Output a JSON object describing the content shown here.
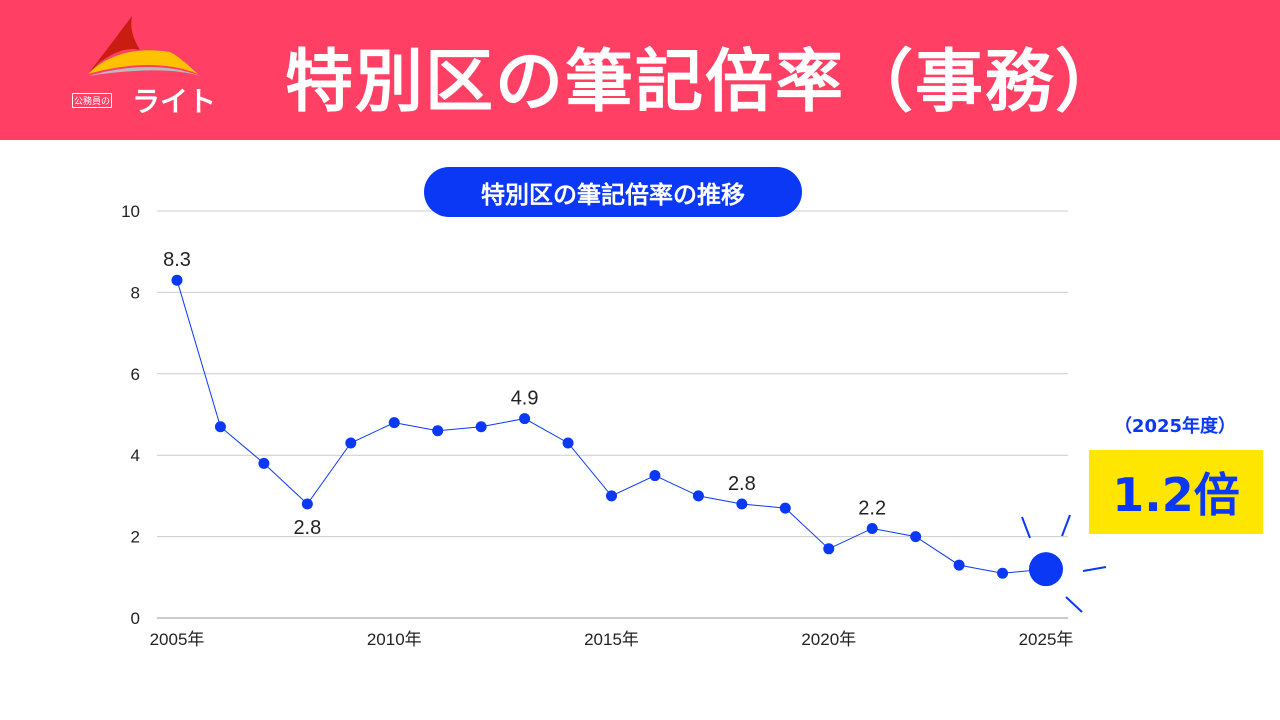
{
  "header": {
    "title": "特別区の筆記倍率（事務）",
    "logo_small": "公務員の",
    "logo_main": "ライト"
  },
  "chart_data": {
    "type": "line",
    "title": "特別区の筆記倍率の推移",
    "x": [
      2005,
      2006,
      2007,
      2008,
      2009,
      2010,
      2011,
      2012,
      2013,
      2014,
      2015,
      2016,
      2017,
      2018,
      2019,
      2020,
      2021,
      2022,
      2023,
      2024,
      2025
    ],
    "values": [
      8.3,
      4.7,
      3.8,
      2.8,
      4.3,
      4.8,
      4.6,
      4.7,
      4.9,
      4.3,
      3.0,
      3.5,
      3.0,
      2.8,
      2.7,
      1.7,
      2.2,
      2.0,
      1.3,
      1.1,
      1.2
    ],
    "data_labels": [
      {
        "x": 2005,
        "text": "8.3",
        "pos": "above"
      },
      {
        "x": 2008,
        "text": "2.8",
        "pos": "below"
      },
      {
        "x": 2013,
        "text": "4.9",
        "pos": "above"
      },
      {
        "x": 2018,
        "text": "2.8",
        "pos": "above"
      },
      {
        "x": 2021,
        "text": "2.2",
        "pos": "above"
      }
    ],
    "ylim": [
      0,
      10
    ],
    "yticks": [
      "0",
      "2",
      "4",
      "6",
      "8",
      "10"
    ],
    "xticks": [
      "2005年",
      "2010年",
      "2015年",
      "2020年",
      "2025年"
    ],
    "grid": true,
    "color": "#0a38f5"
  },
  "callout": {
    "year": "（2025年度）",
    "value": "1.2倍"
  }
}
